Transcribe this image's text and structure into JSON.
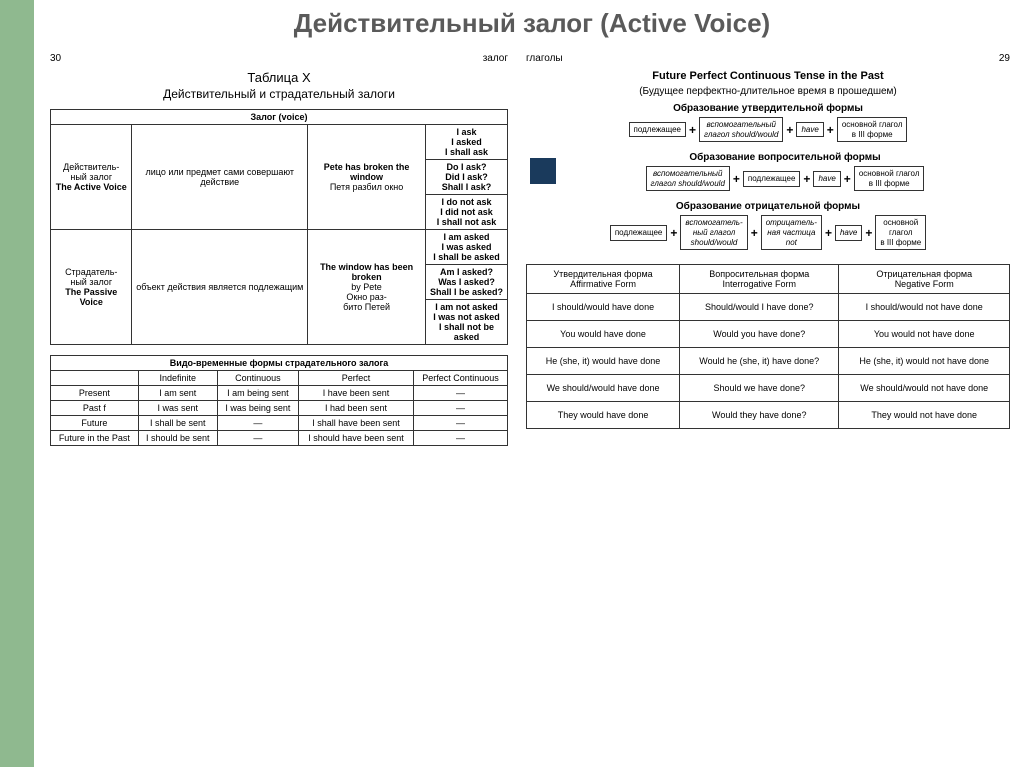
{
  "title": "Действительный залог (Active Voice)",
  "left": {
    "pn": "30",
    "ph": "залог",
    "t1": "Таблица X",
    "t1s": "Действительный и страдательный залоги",
    "tbl1": {
      "h": "Залог (voice)",
      "r1c1": "Действитель-\nный залог",
      "r1c1b": "The Active Voice",
      "r1c2": "лицо или предмет сами совершают действие",
      "r1c3": "Pete has broken the window",
      "r1c3b": "Петя разбил окно",
      "r1c4a": "I ask\nI asked\nI shall ask",
      "r1c4b": "Do I ask?\nDid I ask?\nShall I ask?",
      "r1c4c": "I do not ask\nI did not ask\nI shall not ask",
      "r2c1": "Страдатель-\nный залог",
      "r2c1b": "The Passive Voice",
      "r2c2": "объект действия является подлежащим",
      "r2c3": "The window has been broken",
      "r2c3b": "by Pete",
      "r2c3c": "Окно раз-\nбито Петей",
      "r2c4a": "I am asked\nI was asked\nI shall be asked",
      "r2c4b": "Am I asked?\nWas I asked?\nShall I be asked?",
      "r2c4c": "I am not asked\nI was not asked\nI shall not be asked"
    },
    "tbl2": {
      "h": "Видо-временные формы страдательного залога",
      "cols": [
        "",
        "Indefinite",
        "Continuous",
        "Perfect",
        "Perfect Continuous"
      ],
      "rows": [
        [
          "Present",
          "I am sent",
          "I am being sent",
          "I have been sent",
          "—"
        ],
        [
          "Past f",
          "I was sent",
          "I was being sent",
          "I had been sent",
          "—"
        ],
        [
          "Future",
          "I shall be sent",
          "—",
          "I shall have been sent",
          "—"
        ],
        [
          "Future in the Past",
          "I should be sent",
          "—",
          "I should have been sent",
          "—"
        ]
      ]
    }
  },
  "right": {
    "ph": "глаголы",
    "pn": "29",
    "st": "Future Perfect Continuous Tense in the Past",
    "ss": "(Будущее перфектно-длительное время в прошедшем)",
    "f1": {
      "t": "Образование утвердительной формы",
      "b": [
        "подлежащее",
        "вспомогательный\nглагол should/would",
        "have",
        "основной глагол\nв III форме"
      ]
    },
    "f2": {
      "t": "Образование вопросительной формы",
      "b": [
        "вспомогательный\nглагол should/would",
        "подлежащее",
        "have",
        "основной глагол\nв III форме"
      ]
    },
    "f3": {
      "t": "Образование отрицательной формы",
      "b": [
        "подлежащее",
        "вспомогатель-\nный глагол\nshould/would",
        "отрицатель-\nная частица\nnot",
        "have",
        "основной\nглагол\nв III форме"
      ]
    },
    "tbl3": {
      "h": [
        "Утвердительная форма\nAffirmative Form",
        "Вопросительная форма\nInterrogative Form",
        "Отрицательная форма\nNegative Form"
      ],
      "rows": [
        [
          "I should/would have done",
          "Should/would I have done?",
          "I should/would not have done"
        ],
        [
          "You would have done",
          "Would you have done?",
          "You would not have done"
        ],
        [
          "He (she, it) would have done",
          "Would he (she, it) have done?",
          "He (she, it) would not have done"
        ],
        [
          "We should/would have done",
          "Should we have done?",
          "We should/would not have done"
        ],
        [
          "They would have done",
          "Would they have done?",
          "They would not have done"
        ]
      ]
    }
  }
}
